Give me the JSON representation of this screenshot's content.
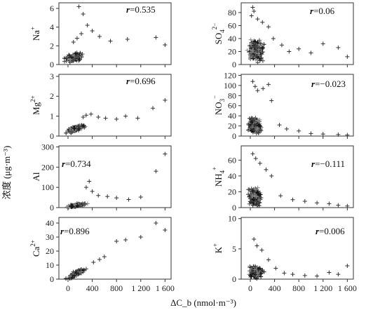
{
  "figure": {
    "ylabel": "浓度 (μg·m⁻³)",
    "xlabel": "ΔC_b (nmol·m⁻³)"
  },
  "chart_data": [
    {
      "type": "scatter",
      "ion": "Na",
      "charge": "+",
      "r_prefix": "r",
      "r_text": "=0.535",
      "r": 0.535,
      "ylim": [
        0,
        6.6
      ],
      "yticks": [
        "0",
        "2",
        "4",
        "6"
      ],
      "ytick_values": [
        0,
        2,
        4,
        6
      ],
      "xlim": [
        -150,
        1700
      ],
      "xticks": [
        "0",
        "400",
        "800",
        "1 200",
        "1 600"
      ],
      "xtick_values": [
        0,
        400,
        800,
        1200,
        1600
      ],
      "outliers": [
        [
          180,
          6.2
        ],
        [
          250,
          5.4
        ],
        [
          320,
          4.2
        ],
        [
          400,
          3.6
        ],
        [
          520,
          3.0
        ],
        [
          700,
          2.5
        ],
        [
          980,
          2.7
        ],
        [
          1450,
          2.9
        ],
        [
          1600,
          2.1
        ],
        [
          150,
          2.8
        ],
        [
          220,
          3.3
        ],
        [
          90,
          2.4
        ]
      ]
    },
    {
      "type": "scatter",
      "ion": "SO",
      "sub": "4",
      "charge": "2−",
      "r_prefix": "r",
      "r_text": "=0.06",
      "r": 0.06,
      "ylim": [
        0,
        95
      ],
      "yticks": [
        "0",
        "20",
        "40",
        "60",
        "80"
      ],
      "ytick_values": [
        0,
        20,
        40,
        60,
        80
      ],
      "xlim": [
        -150,
        1700
      ],
      "xticks": [
        "0",
        "400",
        "800",
        "1 200",
        "1 600"
      ],
      "xtick_values": [
        0,
        400,
        800,
        1200,
        1600
      ],
      "outliers": [
        [
          40,
          88
        ],
        [
          60,
          82
        ],
        [
          120,
          70
        ],
        [
          200,
          65
        ],
        [
          300,
          58
        ],
        [
          380,
          40
        ],
        [
          520,
          30
        ],
        [
          640,
          20
        ],
        [
          800,
          24
        ],
        [
          1000,
          18
        ],
        [
          1200,
          32
        ],
        [
          1450,
          26
        ],
        [
          1600,
          12
        ],
        [
          20,
          75
        ]
      ]
    },
    {
      "type": "scatter",
      "ion": "Mg",
      "charge": "2+",
      "r_prefix": "r",
      "r_text": "=0.696",
      "r": 0.696,
      "ylim": [
        0,
        3.1
      ],
      "yticks": [
        "0",
        "1",
        "2",
        "3"
      ],
      "ytick_values": [
        0,
        1,
        2,
        3
      ],
      "xlim": [
        -150,
        1700
      ],
      "xticks": [
        "0",
        "400",
        "800",
        "1 200",
        "1 600"
      ],
      "xtick_values": [
        0,
        400,
        800,
        1200,
        1600
      ],
      "outliers": [
        [
          380,
          1.1
        ],
        [
          500,
          0.95
        ],
        [
          620,
          0.9
        ],
        [
          800,
          0.85
        ],
        [
          950,
          1.0
        ],
        [
          1150,
          0.9
        ],
        [
          1400,
          1.4
        ],
        [
          1600,
          1.8
        ],
        [
          300,
          1.05
        ],
        [
          250,
          0.95
        ]
      ]
    },
    {
      "type": "scatter",
      "ion": "NO",
      "sub": "3",
      "charge": "−",
      "r_prefix": "r",
      "r_text": "=−0.023",
      "r": -0.023,
      "ylim": [
        0,
        122
      ],
      "yticks": [
        "0",
        "20",
        "40",
        "60",
        "80",
        "100",
        "120"
      ],
      "ytick_values": [
        0,
        20,
        40,
        60,
        80,
        100,
        120
      ],
      "xlim": [
        -150,
        1700
      ],
      "xticks": [
        "0",
        "400",
        "800",
        "1 200",
        "1 600"
      ],
      "xtick_values": [
        0,
        400,
        800,
        1200,
        1600
      ],
      "outliers": [
        [
          40,
          108
        ],
        [
          80,
          98
        ],
        [
          120,
          90
        ],
        [
          210,
          94
        ],
        [
          300,
          102
        ],
        [
          350,
          70
        ],
        [
          480,
          22
        ],
        [
          600,
          14
        ],
        [
          800,
          10
        ],
        [
          1000,
          5
        ],
        [
          1200,
          4
        ],
        [
          1450,
          3
        ],
        [
          1600,
          2
        ]
      ]
    },
    {
      "type": "scatter",
      "ion": "Al",
      "charge": "",
      "r_prefix": "r",
      "r_text": "=0.734",
      "r": 0.734,
      "ylim": [
        0,
        305
      ],
      "yticks": [
        "0",
        "100",
        "200",
        "300"
      ],
      "ytick_values": [
        0,
        100,
        200,
        300
      ],
      "xlim": [
        -150,
        1700
      ],
      "xticks": [
        "0",
        "400",
        "800",
        "1 200",
        "1 600"
      ],
      "xtick_values": [
        0,
        400,
        800,
        1200,
        1600
      ],
      "outliers": [
        [
          400,
          80
        ],
        [
          500,
          60
        ],
        [
          650,
          55
        ],
        [
          800,
          48
        ],
        [
          1000,
          40
        ],
        [
          1200,
          52
        ],
        [
          1450,
          180
        ],
        [
          1600,
          265
        ],
        [
          350,
          130
        ],
        [
          300,
          100
        ]
      ]
    },
    {
      "type": "scatter",
      "ion": "NH",
      "sub": "4",
      "charge": "+",
      "r_prefix": "r",
      "r_text": "=−0.111",
      "r": -0.111,
      "ylim": [
        0,
        78
      ],
      "yticks": [
        "0",
        "20",
        "40",
        "60"
      ],
      "ytick_values": [
        0,
        20,
        40,
        60
      ],
      "xlim": [
        -150,
        1700
      ],
      "xticks": [
        "0",
        "400",
        "800",
        "1 200",
        "1 600"
      ],
      "xtick_values": [
        0,
        400,
        800,
        1200,
        1600
      ],
      "outliers": [
        [
          40,
          68
        ],
        [
          90,
          62
        ],
        [
          160,
          56
        ],
        [
          260,
          48
        ],
        [
          350,
          40
        ],
        [
          500,
          15
        ],
        [
          700,
          10
        ],
        [
          900,
          8
        ],
        [
          1100,
          6
        ],
        [
          1300,
          5
        ],
        [
          1450,
          3
        ],
        [
          1600,
          2
        ]
      ]
    },
    {
      "type": "scatter",
      "ion": "Ca",
      "charge": "2+",
      "r_prefix": "r",
      "r_text": "=0.896",
      "r": 0.896,
      "ylim": [
        0,
        44
      ],
      "yticks": [
        "0",
        "10",
        "20",
        "30",
        "40"
      ],
      "ytick_values": [
        0,
        10,
        20,
        30,
        40
      ],
      "xlim": [
        -150,
        1700
      ],
      "xticks": [
        "0",
        "400",
        "800",
        "1 200",
        "1 600"
      ],
      "xtick_values": [
        0,
        400,
        800,
        1200,
        1600
      ],
      "outliers": [
        [
          520,
          14
        ],
        [
          600,
          16
        ],
        [
          800,
          27
        ],
        [
          950,
          28
        ],
        [
          1200,
          30
        ],
        [
          1450,
          40
        ],
        [
          1600,
          35
        ],
        [
          420,
          12
        ]
      ]
    },
    {
      "type": "scatter",
      "ion": "K",
      "charge": "+",
      "r_prefix": "r",
      "r_text": "=0.006",
      "r": 0.006,
      "ylim": [
        0,
        10.2
      ],
      "yticks": [
        "0",
        "5",
        "10"
      ],
      "ytick_values": [
        0,
        5,
        10
      ],
      "xlim": [
        -150,
        1700
      ],
      "xticks": [
        "0",
        "400",
        "800",
        "1 200",
        "1 600"
      ],
      "xtick_values": [
        0,
        400,
        800,
        1200,
        1600
      ],
      "outliers": [
        [
          60,
          6.6
        ],
        [
          110,
          5.5
        ],
        [
          190,
          4.8
        ],
        [
          300,
          3.2
        ],
        [
          420,
          1.8
        ],
        [
          560,
          1.0
        ],
        [
          700,
          0.8
        ],
        [
          900,
          0.6
        ],
        [
          1100,
          0.5
        ],
        [
          1300,
          1.1
        ],
        [
          1450,
          0.8
        ],
        [
          1600,
          2.2
        ]
      ]
    }
  ]
}
